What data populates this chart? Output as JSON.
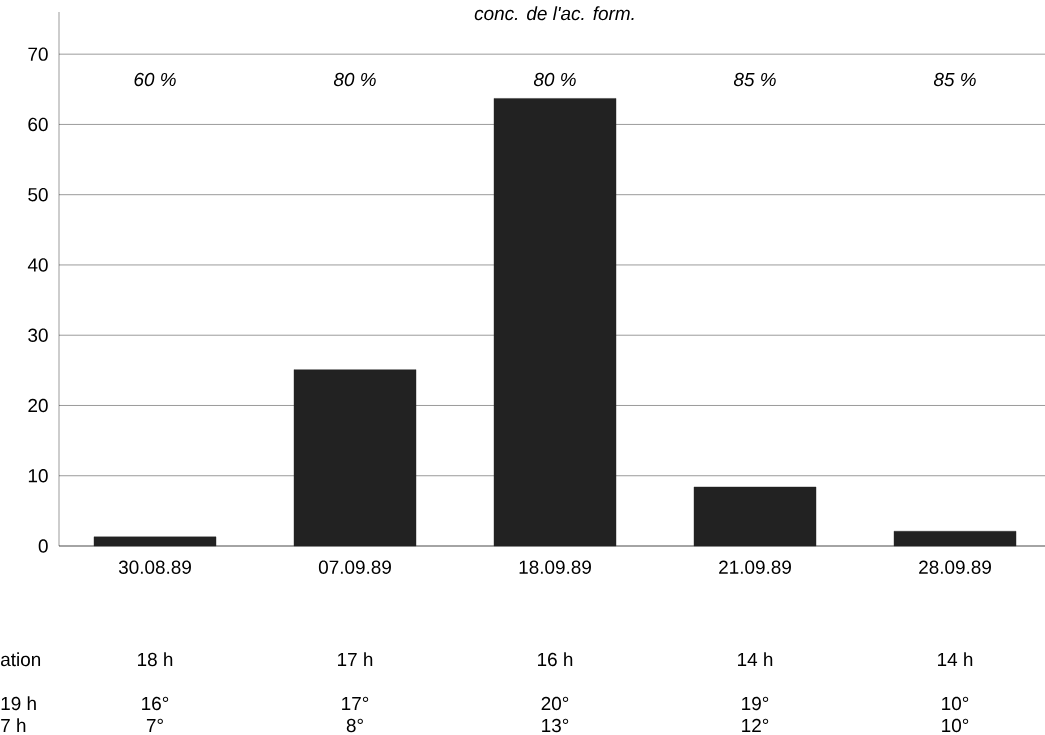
{
  "chart_data": {
    "type": "bar",
    "categories": [
      "30.08.89",
      "07.09.89",
      "18.09.89",
      "21.09.89",
      "28.09.89"
    ],
    "values": [
      1.3,
      25.1,
      63.7,
      8.4,
      2.1
    ],
    "color": "#222222",
    "ylim": [
      0,
      76
    ],
    "yticks": [
      0,
      10,
      20,
      30,
      40,
      50,
      60,
      70
    ],
    "grid": "y",
    "annotations": [
      "conc. de l'ac. form.",
      "60 %",
      "80 %",
      "80 %",
      "85 %",
      "85 %",
      "ation",
      "18  h",
      "17  h",
      "16  h",
      "14  h",
      "14  h",
      "19 h",
      "16°",
      "17°",
      "20°",
      "19°",
      "10°",
      "7 h",
      "7°",
      "8°",
      "13°",
      "12°",
      "10°"
    ]
  }
}
